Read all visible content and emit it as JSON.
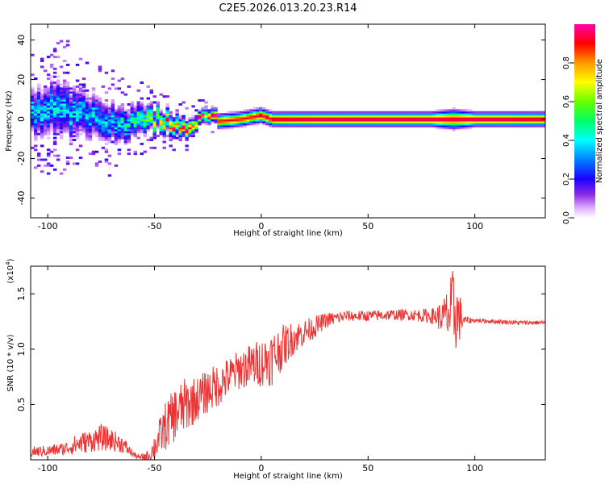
{
  "title": "C2E5.2026.013.20.23.R14",
  "chart_data": [
    {
      "type": "heatmap",
      "xlabel": "Height of straight line (km)",
      "ylabel": "Frequency (Hz)",
      "xlim": [
        -108,
        133
      ],
      "ylim": [
        -50,
        48
      ],
      "x_ticks": [
        -100,
        -50,
        0,
        50,
        100
      ],
      "y_ticks": [
        -40,
        -20,
        0,
        20,
        40
      ],
      "colorbar": {
        "label": "Normalized spectral amplitude",
        "range": [
          0,
          1
        ],
        "ticks": [
          0.0,
          0.2,
          0.4,
          0.6,
          0.8
        ]
      },
      "ridge": {
        "x": [
          -105,
          -95,
          -85,
          -75,
          -65,
          -55,
          -45,
          -35,
          -30,
          -25,
          -20,
          -10,
          -5,
          0,
          5,
          10,
          20,
          40,
          60,
          80,
          90,
          100,
          120,
          133
        ],
        "freq": [
          4,
          6,
          2,
          0,
          -3,
          0,
          -1,
          -3,
          -2,
          0,
          -1,
          0,
          1,
          2,
          0,
          0,
          0,
          0,
          0,
          0,
          0,
          0,
          0,
          0
        ],
        "width": [
          10,
          12,
          10,
          9,
          8,
          6,
          5,
          4,
          3,
          3,
          3,
          3,
          3,
          3,
          3,
          3,
          3,
          3,
          3,
          3,
          4,
          3,
          3,
          3
        ],
        "strength": [
          0.35,
          0.35,
          0.35,
          0.35,
          0.35,
          0.5,
          0.75,
          0.8,
          0.85,
          0.88,
          0.9,
          0.9,
          0.9,
          0.95,
          0.95,
          0.97,
          0.98,
          0.99,
          0.99,
          0.99,
          0.95,
          0.99,
          0.98,
          0.97
        ]
      }
    },
    {
      "type": "line",
      "xlabel": "Height of straight line (km)",
      "ylabel": "SNR (10 * v/v)",
      "y_multiplier": "(x10",
      "y_multiplier_exp": "4",
      "y_multiplier_close": ")",
      "xlim": [
        -108,
        133
      ],
      "ylim": [
        0,
        1.75
      ],
      "x_ticks": [
        -100,
        -50,
        0,
        50,
        100
      ],
      "y_ticks": [
        0.5,
        1.0,
        1.5
      ],
      "line_color": "#ee3333",
      "series": [
        {
          "name": "SNR",
          "x": [
            -108,
            -100,
            -92,
            -85,
            -80,
            -75,
            -70,
            -65,
            -60,
            -57,
            -52,
            -50,
            -45,
            -40,
            -35,
            -30,
            -25,
            -20,
            -15,
            -10,
            -5,
            0,
            5,
            10,
            15,
            20,
            25,
            30,
            40,
            50,
            60,
            70,
            80,
            85,
            88,
            90,
            92,
            95,
            100,
            110,
            120,
            133
          ],
          "y": [
            0.07,
            0.08,
            0.1,
            0.15,
            0.17,
            0.2,
            0.18,
            0.14,
            0.05,
            0.02,
            0.04,
            0.12,
            0.3,
            0.42,
            0.5,
            0.55,
            0.62,
            0.68,
            0.75,
            0.82,
            0.85,
            0.88,
            0.92,
            1.02,
            1.1,
            1.15,
            1.2,
            1.26,
            1.3,
            1.3,
            1.31,
            1.31,
            1.3,
            1.29,
            1.31,
            1.35,
            1.3,
            1.26,
            1.26,
            1.25,
            1.24,
            1.24
          ],
          "noise": [
            0.05,
            0.05,
            0.06,
            0.1,
            0.1,
            0.12,
            0.1,
            0.08,
            0.03,
            0.02,
            0.06,
            0.12,
            0.22,
            0.25,
            0.25,
            0.2,
            0.2,
            0.2,
            0.18,
            0.18,
            0.2,
            0.22,
            0.25,
            0.2,
            0.15,
            0.12,
            0.1,
            0.07,
            0.05,
            0.05,
            0.05,
            0.05,
            0.07,
            0.15,
            0.3,
            0.4,
            0.3,
            0.04,
            0.02,
            0.02,
            0.02,
            0.02
          ]
        }
      ]
    }
  ]
}
